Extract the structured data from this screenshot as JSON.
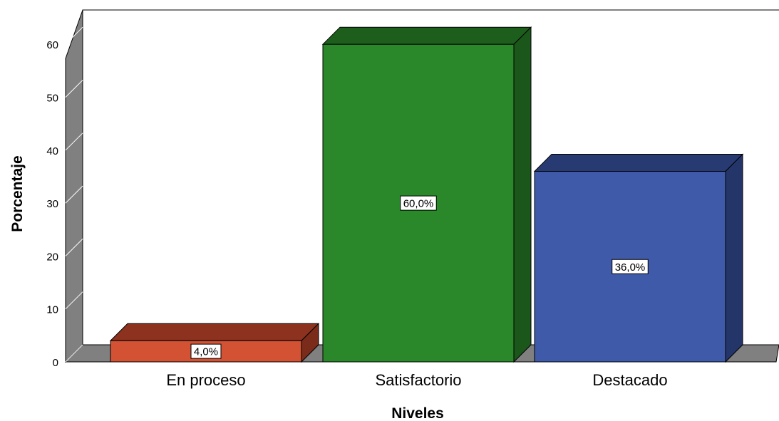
{
  "chart_data": {
    "type": "bar",
    "categories": [
      "En proceso",
      "Satisfactorio",
      "Destacado"
    ],
    "values": [
      4.0,
      60.0,
      36.0
    ],
    "data_labels": [
      "4,0%",
      "60,0%",
      "36,0%"
    ],
    "xlabel": "Niveles",
    "ylabel": "Porcentaje",
    "ylim": [
      0,
      60
    ],
    "yticks": [
      {
        "value": 0,
        "label": "0"
      },
      {
        "value": 10,
        "label": "10"
      },
      {
        "value": 20,
        "label": "20"
      },
      {
        "value": 30,
        "label": "30"
      },
      {
        "value": 40,
        "label": "40"
      },
      {
        "value": 50,
        "label": "50"
      },
      {
        "value": 60,
        "label": "60"
      }
    ],
    "grid": false,
    "style": "3d-bar",
    "colors": [
      {
        "front": "#d35233",
        "top": "#8c321e",
        "side": "#7a2b19"
      },
      {
        "front": "#2a882a",
        "top": "#1d5e1d",
        "side": "#1b561b"
      },
      {
        "front": "#3f5aa8",
        "top": "#283a72",
        "side": "#24356a"
      }
    ],
    "wall_color": "#808080",
    "floor_color": "#808080"
  }
}
